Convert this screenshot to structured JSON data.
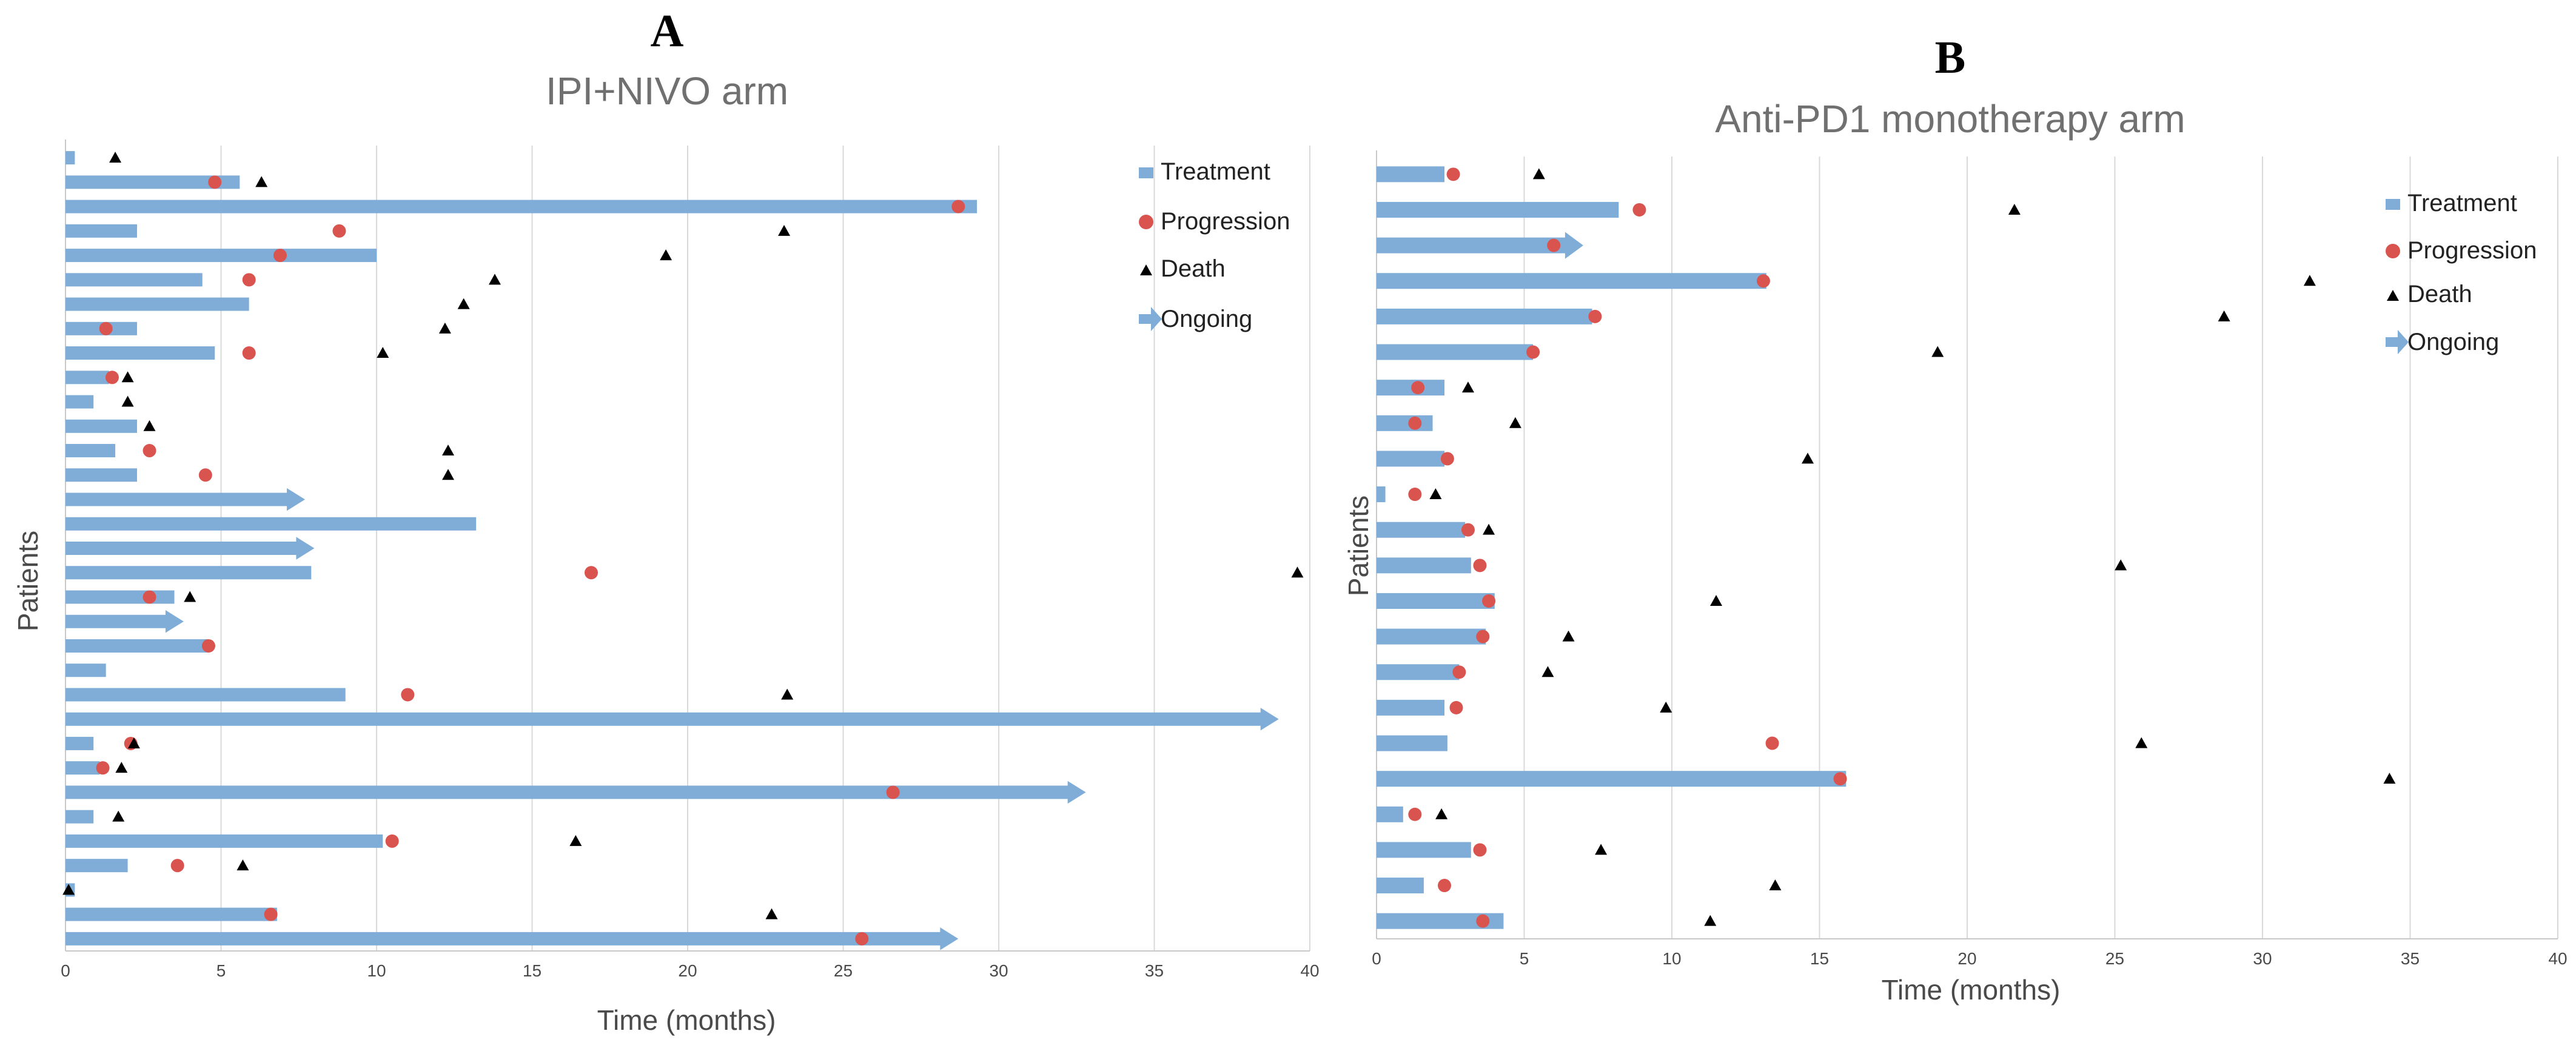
{
  "chart_data": [
    {
      "type": "swimmer",
      "panel_label": "A",
      "title": "IPI+NIVO arm",
      "xlabel": "Time (months)",
      "ylabel": "Patients",
      "xlim": [
        0,
        40
      ],
      "xticks": [
        0,
        5,
        10,
        15,
        20,
        25,
        30,
        35,
        40
      ],
      "grid": true,
      "legend": {
        "position": "top-right",
        "entries": [
          {
            "key": "treatment",
            "label": "Treatment"
          },
          {
            "key": "progression",
            "label": "Progression"
          },
          {
            "key": "death",
            "label": "Death"
          },
          {
            "key": "ongoing",
            "label": "Ongoing"
          }
        ]
      },
      "patients": [
        {
          "treatment": 0.3,
          "progression": null,
          "death": 1.6,
          "ongoing": false
        },
        {
          "treatment": 5.6,
          "progression": 4.8,
          "death": 6.3,
          "ongoing": false
        },
        {
          "treatment": 29.3,
          "progression": 28.7,
          "death": null,
          "ongoing": false
        },
        {
          "treatment": 2.3,
          "progression": 8.8,
          "death": 23.1,
          "ongoing": false
        },
        {
          "treatment": 10.0,
          "progression": 6.9,
          "death": 19.3,
          "ongoing": false
        },
        {
          "treatment": 4.4,
          "progression": 5.9,
          "death": 13.8,
          "ongoing": false
        },
        {
          "treatment": 5.9,
          "progression": null,
          "death": 12.8,
          "ongoing": false
        },
        {
          "treatment": 2.3,
          "progression": 1.3,
          "death": 12.2,
          "ongoing": false
        },
        {
          "treatment": 4.8,
          "progression": 5.9,
          "death": 10.2,
          "ongoing": false
        },
        {
          "treatment": 1.4,
          "progression": 1.5,
          "death": 2.0,
          "ongoing": false
        },
        {
          "treatment": 0.9,
          "progression": null,
          "death": 2.0,
          "ongoing": false
        },
        {
          "treatment": 2.3,
          "progression": null,
          "death": 2.7,
          "ongoing": false
        },
        {
          "treatment": 1.6,
          "progression": 2.7,
          "death": 12.3,
          "ongoing": false
        },
        {
          "treatment": 2.3,
          "progression": 4.5,
          "death": 12.3,
          "ongoing": false
        },
        {
          "treatment": 7.7,
          "progression": null,
          "death": null,
          "ongoing": true
        },
        {
          "treatment": 13.2,
          "progression": null,
          "death": null,
          "ongoing": false
        },
        {
          "treatment": 8.0,
          "progression": null,
          "death": null,
          "ongoing": true
        },
        {
          "treatment": 7.9,
          "progression": 16.9,
          "death": 39.6,
          "ongoing": false
        },
        {
          "treatment": 3.5,
          "progression": 2.7,
          "death": 4.0,
          "ongoing": false
        },
        {
          "treatment": 3.8,
          "progression": null,
          "death": null,
          "ongoing": true
        },
        {
          "treatment": 4.6,
          "progression": 4.6,
          "death": null,
          "ongoing": false
        },
        {
          "treatment": 1.3,
          "progression": null,
          "death": null,
          "ongoing": false
        },
        {
          "treatment": 9.0,
          "progression": 11.0,
          "death": 23.2,
          "ongoing": false
        },
        {
          "treatment": 39.0,
          "progression": null,
          "death": null,
          "ongoing": true
        },
        {
          "treatment": 0.9,
          "progression": 2.1,
          "death": 2.2,
          "ongoing": false
        },
        {
          "treatment": 1.1,
          "progression": 1.2,
          "death": 1.8,
          "ongoing": false
        },
        {
          "treatment": 32.8,
          "progression": 26.6,
          "death": null,
          "ongoing": true
        },
        {
          "treatment": 0.9,
          "progression": null,
          "death": 1.7,
          "ongoing": false
        },
        {
          "treatment": 10.2,
          "progression": 10.5,
          "death": 16.4,
          "ongoing": false
        },
        {
          "treatment": 2.0,
          "progression": 3.6,
          "death": 5.7,
          "ongoing": false
        },
        {
          "treatment": 0.3,
          "progression": null,
          "death": 0.1,
          "ongoing": false
        },
        {
          "treatment": 6.8,
          "progression": 6.6,
          "death": 22.7,
          "ongoing": false
        },
        {
          "treatment": 28.7,
          "progression": 25.6,
          "death": null,
          "ongoing": true
        }
      ]
    },
    {
      "type": "swimmer",
      "panel_label": "B",
      "title": "Anti-PD1 monotherapy arm",
      "xlabel": "Time (months)",
      "ylabel": "Patients",
      "xlim": [
        0,
        40
      ],
      "xticks": [
        0,
        5,
        10,
        15,
        20,
        25,
        30,
        35,
        40
      ],
      "grid": true,
      "legend": {
        "position": "top-right",
        "entries": [
          {
            "key": "treatment",
            "label": "Treatment"
          },
          {
            "key": "progression",
            "label": "Progression"
          },
          {
            "key": "death",
            "label": "Death"
          },
          {
            "key": "ongoing",
            "label": "Ongoing"
          }
        ]
      },
      "patients": [
        {
          "treatment": 2.3,
          "progression": 2.6,
          "death": 5.5,
          "ongoing": false
        },
        {
          "treatment": 8.2,
          "progression": 8.9,
          "death": 21.6,
          "ongoing": false
        },
        {
          "treatment": 7.0,
          "progression": 6.0,
          "death": null,
          "ongoing": true
        },
        {
          "treatment": 13.2,
          "progression": 13.1,
          "death": 31.6,
          "ongoing": false
        },
        {
          "treatment": 7.3,
          "progression": 7.4,
          "death": 28.7,
          "ongoing": false
        },
        {
          "treatment": 5.3,
          "progression": 5.3,
          "death": 19.0,
          "ongoing": false
        },
        {
          "treatment": 2.3,
          "progression": 1.4,
          "death": 3.1,
          "ongoing": false
        },
        {
          "treatment": 1.9,
          "progression": 1.3,
          "death": 4.7,
          "ongoing": false
        },
        {
          "treatment": 2.3,
          "progression": 2.4,
          "death": 14.6,
          "ongoing": false
        },
        {
          "treatment": 0.3,
          "progression": 1.3,
          "death": 2.0,
          "ongoing": false
        },
        {
          "treatment": 3.0,
          "progression": 3.1,
          "death": 3.8,
          "ongoing": false
        },
        {
          "treatment": 3.2,
          "progression": 3.5,
          "death": 25.2,
          "ongoing": false
        },
        {
          "treatment": 4.0,
          "progression": 3.8,
          "death": 11.5,
          "ongoing": false
        },
        {
          "treatment": 3.7,
          "progression": 3.6,
          "death": 6.5,
          "ongoing": false
        },
        {
          "treatment": 2.8,
          "progression": 2.8,
          "death": 5.8,
          "ongoing": false
        },
        {
          "treatment": 2.3,
          "progression": 2.7,
          "death": 9.8,
          "ongoing": false
        },
        {
          "treatment": 2.4,
          "progression": 13.4,
          "death": 25.9,
          "ongoing": false
        },
        {
          "treatment": 15.9,
          "progression": 15.7,
          "death": 34.3,
          "ongoing": false
        },
        {
          "treatment": 0.9,
          "progression": 1.3,
          "death": 2.2,
          "ongoing": false
        },
        {
          "treatment": 3.2,
          "progression": 3.5,
          "death": 7.6,
          "ongoing": false
        },
        {
          "treatment": 1.6,
          "progression": 2.3,
          "death": 13.5,
          "ongoing": false
        },
        {
          "treatment": 4.3,
          "progression": 3.6,
          "death": 11.3,
          "ongoing": false
        }
      ]
    }
  ],
  "colors": {
    "treatment": "#7fadd8",
    "progression": "#d9534f",
    "death": "#000000",
    "grid": "#d9d9d9",
    "axis": "#c8c8c8"
  }
}
